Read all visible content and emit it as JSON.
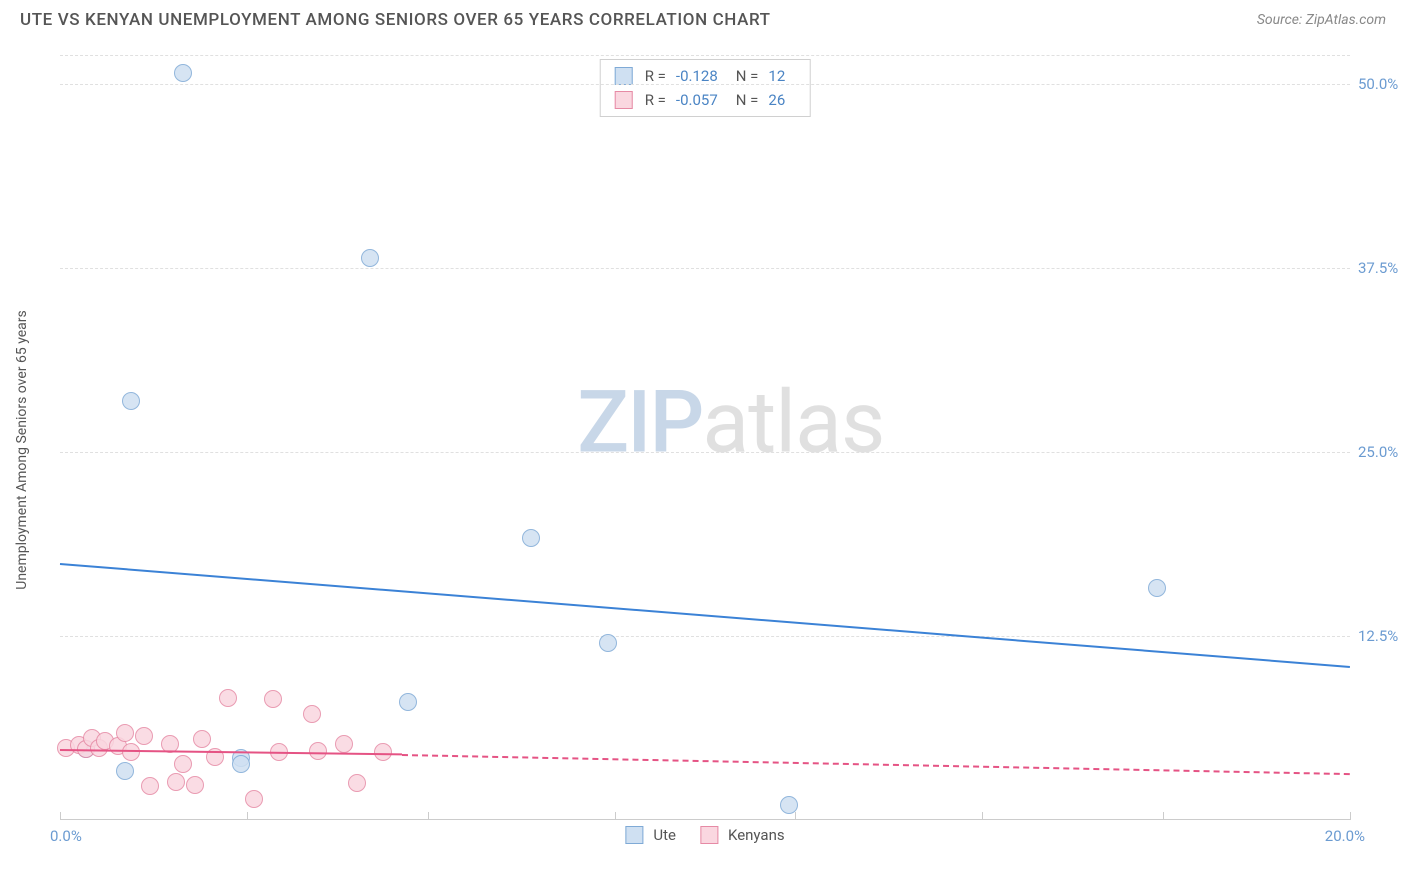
{
  "title": "UTE VS KENYAN UNEMPLOYMENT AMONG SENIORS OVER 65 YEARS CORRELATION CHART",
  "source": "Source: ZipAtlas.com",
  "y_axis_label": "Unemployment Among Seniors over 65 years",
  "watermark": {
    "part1": "ZIP",
    "part2": "atlas"
  },
  "chart": {
    "type": "scatter",
    "background_color": "#ffffff",
    "grid_color": "#e0e0e0",
    "axis_label_color": "#6b9bd1",
    "xlim": [
      0,
      20
    ],
    "ylim": [
      0,
      52
    ],
    "x_origin_label": "0.0%",
    "x_end_label": "20.0%",
    "x_ticks": [
      0,
      2.9,
      5.7,
      8.6,
      11.4,
      14.3,
      17.1,
      20
    ],
    "y_ticks": [
      {
        "v": 12.5,
        "label": "12.5%"
      },
      {
        "v": 25.0,
        "label": "25.0%"
      },
      {
        "v": 37.5,
        "label": "37.5%"
      },
      {
        "v": 50.0,
        "label": "50.0%"
      }
    ],
    "series": [
      {
        "name": "Ute",
        "fill": "#cfe0f2",
        "stroke": "#7faad6",
        "marker_radius": 9,
        "trend_color": "#3b82d6",
        "trend": {
          "x1": 0,
          "y1": 17.5,
          "x2": 20,
          "y2": 10.5
        },
        "R": "-0.128",
        "N": "12",
        "points": [
          {
            "x": 1.9,
            "y": 50.8
          },
          {
            "x": 4.8,
            "y": 38.2
          },
          {
            "x": 1.1,
            "y": 28.5
          },
          {
            "x": 7.3,
            "y": 19.2
          },
          {
            "x": 17.0,
            "y": 15.8
          },
          {
            "x": 8.5,
            "y": 12.0
          },
          {
            "x": 5.4,
            "y": 8.0
          },
          {
            "x": 2.8,
            "y": 4.2
          },
          {
            "x": 2.8,
            "y": 3.8
          },
          {
            "x": 1.0,
            "y": 3.3
          },
          {
            "x": 0.4,
            "y": 4.8
          },
          {
            "x": 11.3,
            "y": 1.0
          }
        ]
      },
      {
        "name": "Kenyans",
        "fill": "#fad7e0",
        "stroke": "#e68aa5",
        "marker_radius": 9,
        "trend_color": "#e55384",
        "trend_solid": {
          "x1": 0,
          "y1": 4.8,
          "x2": 5.3,
          "y2": 4.5
        },
        "trend_dash": {
          "x1": 5.3,
          "y1": 4.5,
          "x2": 20,
          "y2": 3.2
        },
        "R": "-0.057",
        "N": "26",
        "points": [
          {
            "x": 0.1,
            "y": 4.9
          },
          {
            "x": 0.3,
            "y": 5.1
          },
          {
            "x": 0.4,
            "y": 4.8
          },
          {
            "x": 0.5,
            "y": 5.6
          },
          {
            "x": 0.6,
            "y": 4.9
          },
          {
            "x": 0.7,
            "y": 5.4
          },
          {
            "x": 0.9,
            "y": 5.0
          },
          {
            "x": 1.0,
            "y": 5.9
          },
          {
            "x": 1.1,
            "y": 4.6
          },
          {
            "x": 1.3,
            "y": 5.7
          },
          {
            "x": 1.4,
            "y": 2.3
          },
          {
            "x": 1.7,
            "y": 5.2
          },
          {
            "x": 1.8,
            "y": 2.6
          },
          {
            "x": 1.9,
            "y": 3.8
          },
          {
            "x": 2.1,
            "y": 2.4
          },
          {
            "x": 2.2,
            "y": 5.5
          },
          {
            "x": 2.4,
            "y": 4.3
          },
          {
            "x": 2.6,
            "y": 8.3
          },
          {
            "x": 3.0,
            "y": 1.4
          },
          {
            "x": 3.3,
            "y": 8.2
          },
          {
            "x": 3.4,
            "y": 4.6
          },
          {
            "x": 3.9,
            "y": 7.2
          },
          {
            "x": 4.0,
            "y": 4.7
          },
          {
            "x": 4.4,
            "y": 5.2
          },
          {
            "x": 4.6,
            "y": 2.5
          },
          {
            "x": 5.0,
            "y": 4.6
          }
        ]
      }
    ]
  },
  "legend_bottom": [
    {
      "label": "Ute",
      "fill": "#cfe0f2",
      "stroke": "#7faad6"
    },
    {
      "label": "Kenyans",
      "fill": "#fad7e0",
      "stroke": "#e68aa5"
    }
  ]
}
